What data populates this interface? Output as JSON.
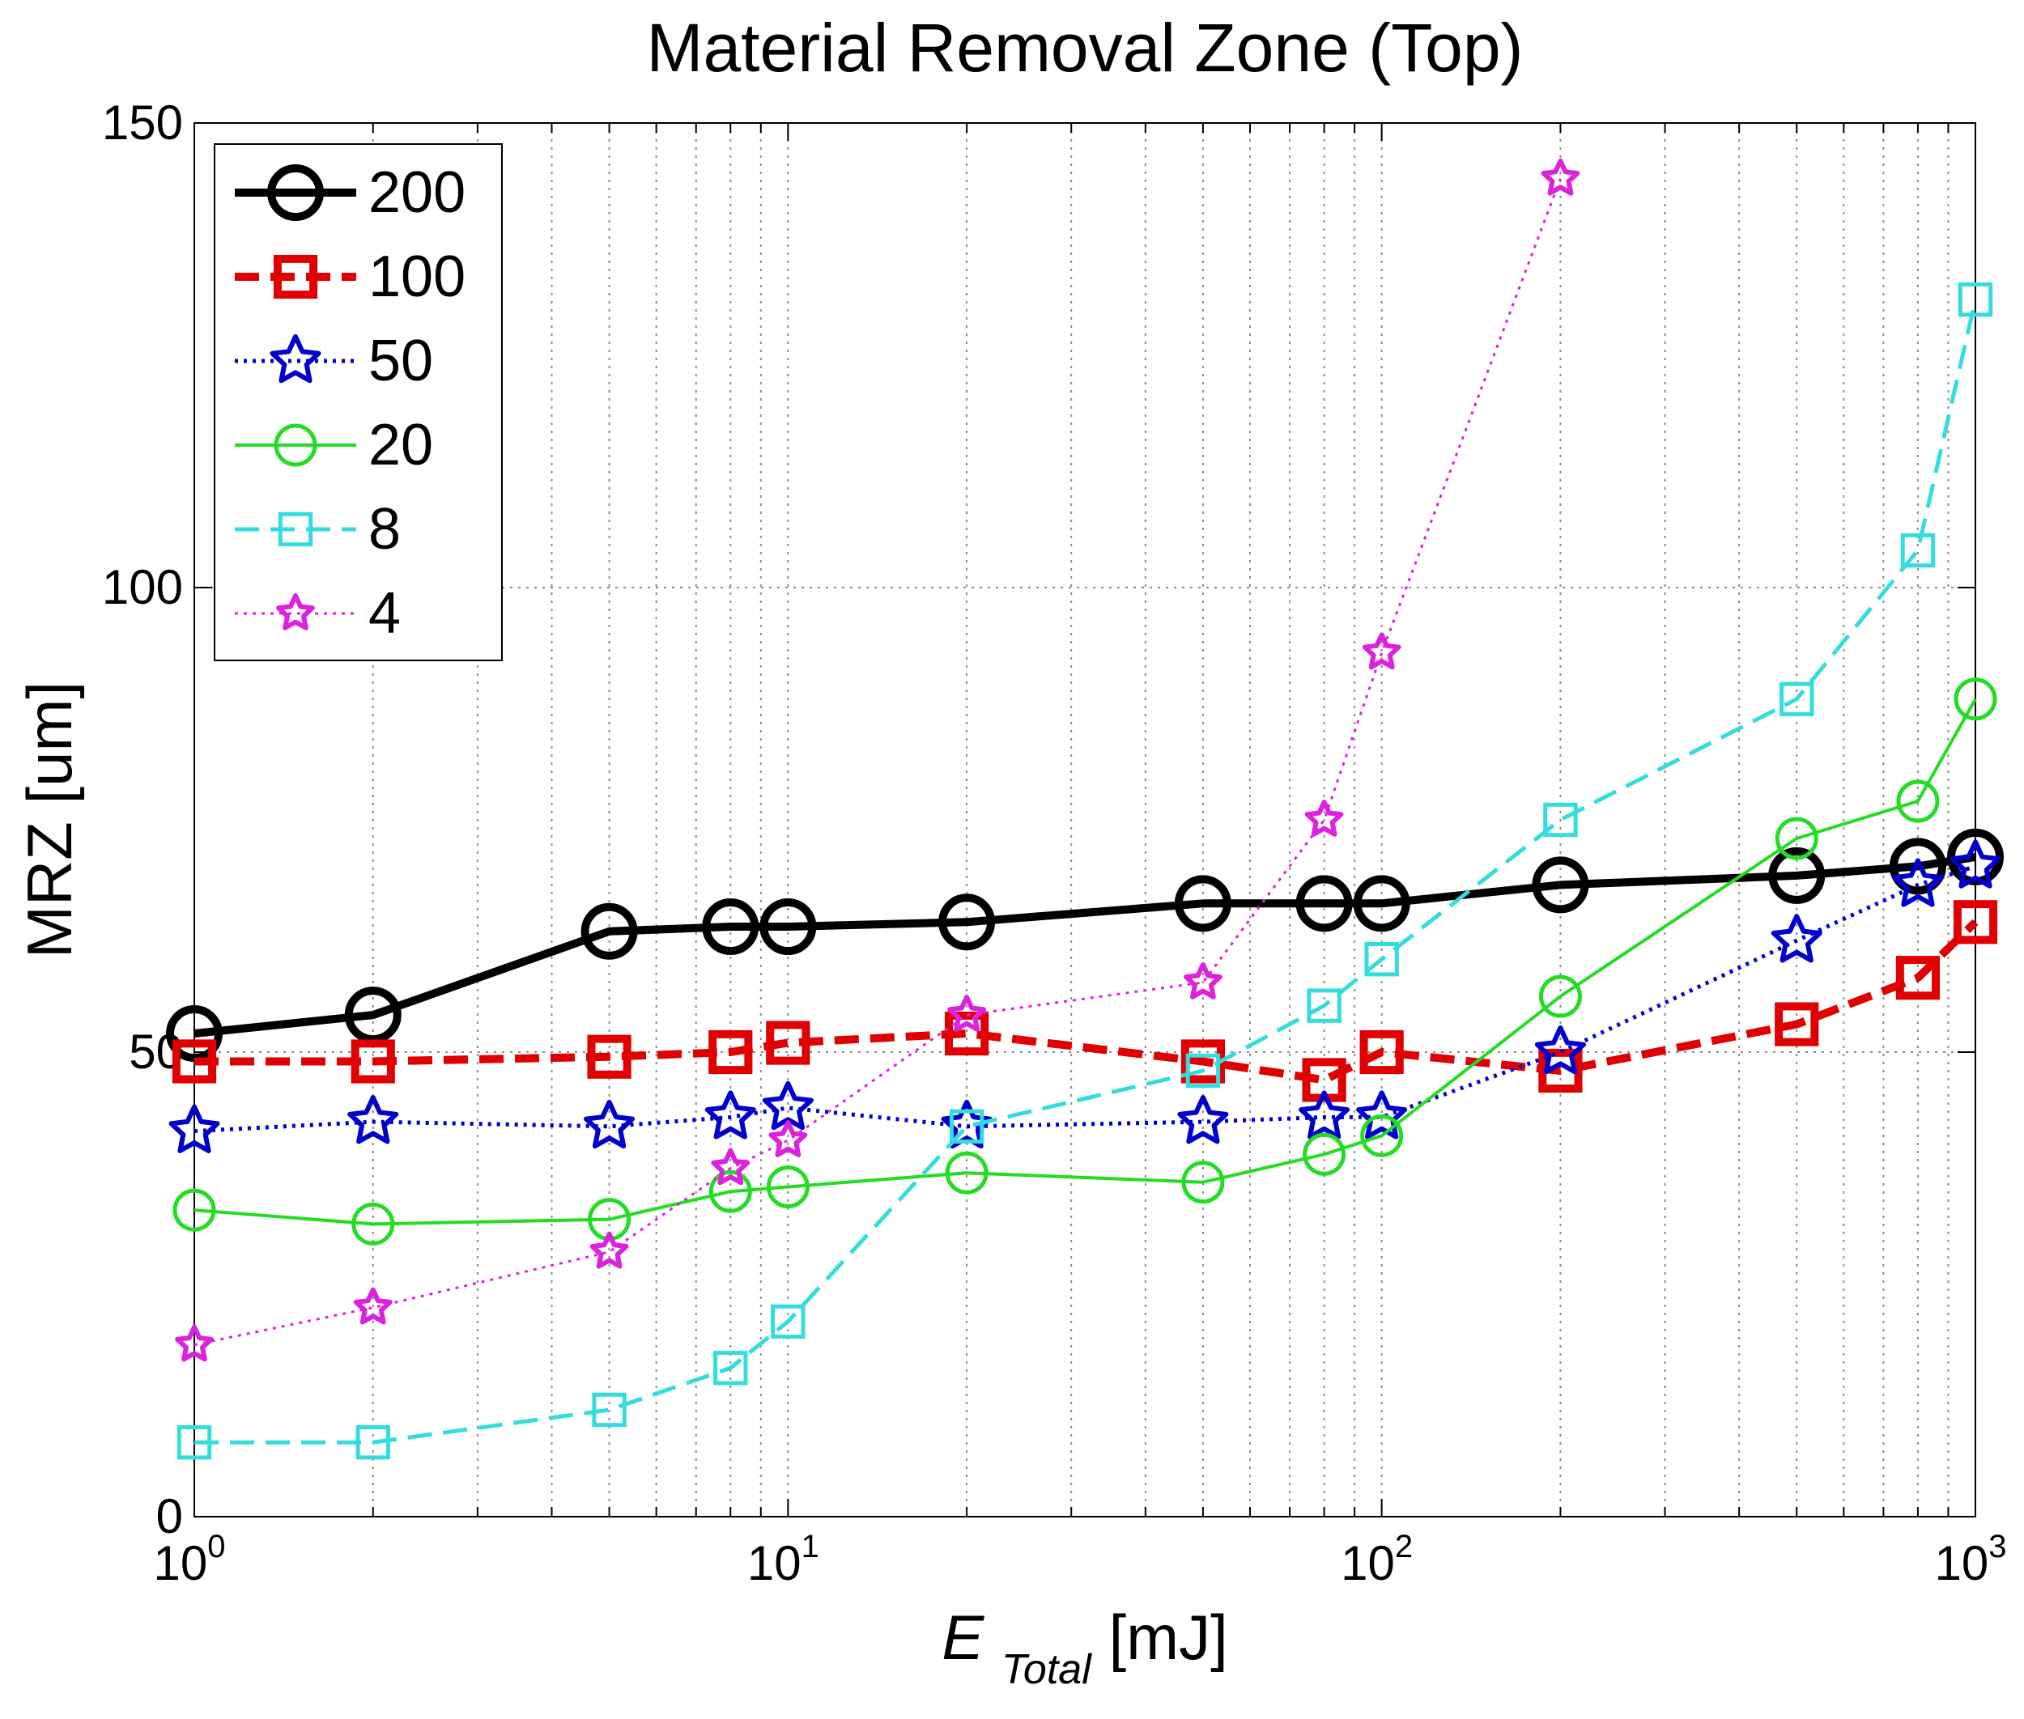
{
  "chart_data": {
    "type": "line",
    "title": "Material Removal Zone (Top)",
    "xlabel": {
      "main": "E",
      "sub": "Total",
      "unit": " [mJ]"
    },
    "ylabel": "MRZ [um]",
    "xscale": "log",
    "xlim": [
      1,
      1000
    ],
    "ylim": [
      0,
      150
    ],
    "yticks": [
      0,
      50,
      100,
      150
    ],
    "ytick_labels": [
      "0",
      "50",
      "100",
      "150"
    ],
    "xticks": [
      {
        "value": 1,
        "base": "10",
        "exp": "0"
      },
      {
        "value": 10,
        "base": "10",
        "exp": "1"
      },
      {
        "value": 100,
        "base": "10",
        "exp": "2"
      },
      {
        "value": 1000,
        "base": "10",
        "exp": "3"
      }
    ],
    "grid": true,
    "legend_position": "top-left",
    "series": [
      {
        "name": "200",
        "color": "#000000",
        "marker": "circle",
        "line": "solid",
        "x": [
          1,
          2,
          5,
          8,
          10,
          20,
          50,
          80,
          100,
          200,
          500,
          800,
          1000
        ],
        "y": [
          52,
          54,
          63,
          63.5,
          63.5,
          64,
          66,
          66,
          66,
          68,
          69,
          70,
          71
        ]
      },
      {
        "name": "100",
        "color": "#e00000",
        "marker": "square",
        "line": "dashed",
        "x": [
          1,
          2,
          5,
          8,
          10,
          20,
          50,
          80,
          100,
          200,
          500,
          800,
          1000
        ],
        "y": [
          49,
          49,
          49.5,
          50,
          51,
          52,
          49,
          47,
          50,
          48,
          53,
          58,
          64
        ]
      },
      {
        "name": "50",
        "color": "#0000cc",
        "marker": "star",
        "line": "dotted",
        "x": [
          1,
          2,
          5,
          8,
          10,
          20,
          50,
          80,
          100,
          200,
          500,
          800,
          1000
        ],
        "y": [
          41.5,
          42.5,
          42,
          43,
          44,
          42,
          42.5,
          43,
          43,
          50,
          62,
          68,
          70
        ]
      },
      {
        "name": "20",
        "color": "#22dd22",
        "marker": "circle",
        "line": "solid",
        "x": [
          1,
          2,
          5,
          8,
          10,
          20,
          50,
          80,
          100,
          200,
          500,
          800,
          1000
        ],
        "y": [
          33,
          31.5,
          32,
          35,
          35.5,
          37,
          36,
          39,
          41,
          56,
          73,
          77,
          88
        ]
      },
      {
        "name": "8",
        "color": "#33dddd",
        "marker": "square",
        "line": "dashed",
        "x": [
          1,
          2,
          5,
          8,
          10,
          20,
          50,
          80,
          100,
          200,
          500,
          800,
          1000
        ],
        "y": [
          8,
          8,
          11.5,
          16,
          21,
          42,
          48,
          55,
          60,
          75,
          88,
          104,
          131
        ]
      },
      {
        "name": "4",
        "color": "#dd22dd",
        "marker": "star",
        "line": "dotted",
        "x": [
          1,
          2,
          5,
          8,
          10,
          20,
          50,
          80,
          100,
          200
        ],
        "y": [
          18.5,
          22.5,
          28.5,
          37.5,
          40.5,
          54,
          57.5,
          75,
          93,
          144
        ]
      }
    ]
  }
}
